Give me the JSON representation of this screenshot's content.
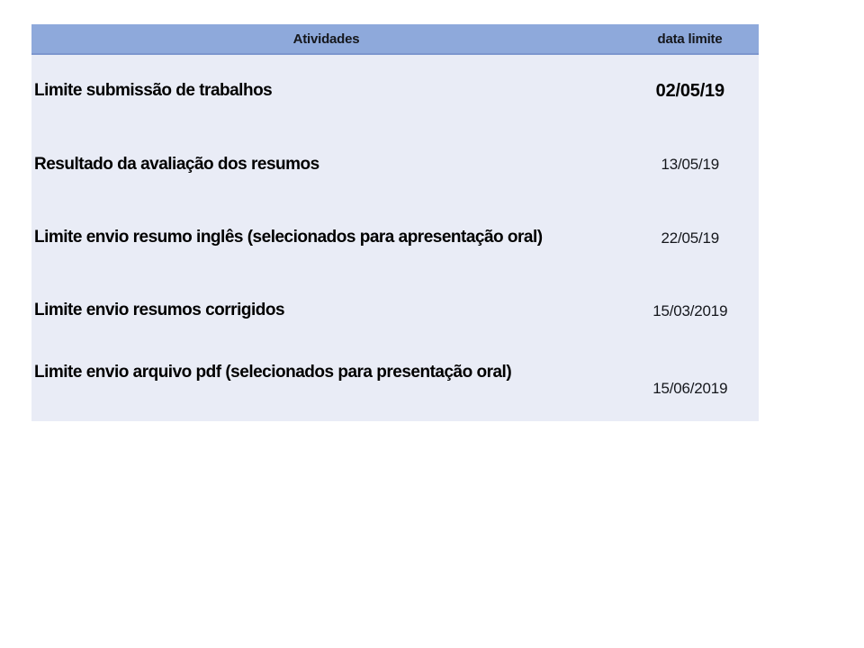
{
  "table": {
    "headers": {
      "activities": "Atividades",
      "deadline": "data limite"
    },
    "rows": [
      {
        "activity": "Limite submissão de trabalhos",
        "date": "02/05/19",
        "emphasis": true
      },
      {
        "activity": "Resultado da avaliação dos resumos",
        "date": "13/05/19",
        "emphasis": false
      },
      {
        "activity": "Limite envio resumo inglês (selecionados para apresentação oral)",
        "date": "22/05/19",
        "emphasis": false
      },
      {
        "activity": "Limite envio resumos corrigidos",
        "date": "15/03/2019",
        "emphasis": false
      },
      {
        "activity": "Limite envio arquivo pdf (selecionados para presentação oral)",
        "date": "15/06/2019",
        "emphasis": false
      }
    ],
    "colors": {
      "header_bg": "#8EA9DB",
      "header_border": "#7C96CE",
      "body_bg": "#E9ECF6",
      "text": "#000000"
    }
  }
}
